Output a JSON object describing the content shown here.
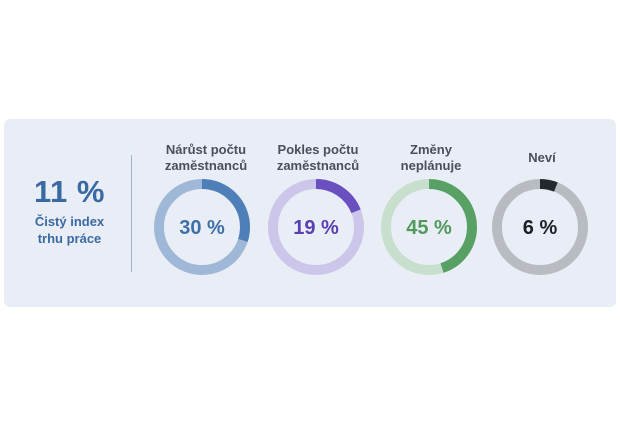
{
  "summary": {
    "value": "11 %",
    "label_line1": "Čistý index",
    "label_line2": "trhu práce"
  },
  "chart_data": {
    "type": "donut",
    "items": [
      {
        "label_line1": "Nárůst počtu",
        "label_line2": "zaměstnanců",
        "value": 30,
        "display": "30 %",
        "color": "#4f7fb8",
        "track": "#9fb8d7",
        "text_color": "#3f6fa8"
      },
      {
        "label_line1": "Pokles počtu",
        "label_line2": "zaměstnanců",
        "value": 19,
        "display": "19 %",
        "color": "#6a4fc1",
        "track": "#cbc6ea",
        "text_color": "#5a3fb3"
      },
      {
        "label_line1": "Změny",
        "label_line2": "neplánuje",
        "value": 45,
        "display": "45 %",
        "color": "#58a064",
        "track": "#c8dfcd",
        "text_color": "#4f9a5c"
      },
      {
        "label_line1": "Neví",
        "label_line2": "",
        "value": 6,
        "display": "6 %",
        "color": "#23282f",
        "track": "#b8bbc2",
        "text_color": "#1c2026"
      }
    ]
  }
}
